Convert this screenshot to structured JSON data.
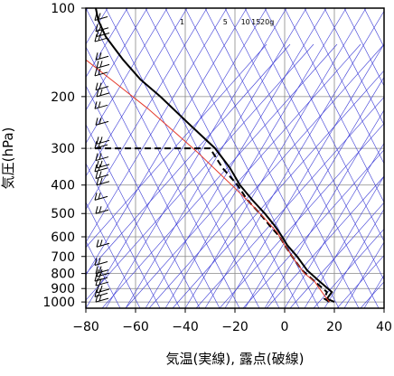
{
  "chart_data": {
    "type": "line",
    "title": "",
    "xlabel": "気温(実線), 露点(破線)",
    "ylabel": "気圧(hPa)",
    "xlim": [
      -80,
      40
    ],
    "ylim": [
      1050,
      100
    ],
    "yscale": "log",
    "x_ticks": [
      "−80",
      "−60",
      "−40",
      "−20",
      "0",
      "20",
      "40"
    ],
    "x_tick_values": [
      -80,
      -60,
      -40,
      -20,
      0,
      20,
      40
    ],
    "y_ticks": [
      "100",
      "200",
      "300",
      "400",
      "500",
      "600",
      "700",
      "800",
      "900",
      "1000"
    ],
    "y_tick_values": [
      100,
      200,
      300,
      400,
      500,
      600,
      700,
      800,
      900,
      1000
    ],
    "mixing_ratio_labels": [
      "1",
      "5",
      "10",
      "15",
      "20g"
    ],
    "mixing_ratio_values": [
      1,
      5,
      10,
      15,
      20
    ],
    "series": [
      {
        "key": "temperature",
        "style": "solid",
        "color": "#000000",
        "points": [
          [
            20,
            1000
          ],
          [
            17,
            975
          ],
          [
            19,
            925
          ],
          [
            14,
            850
          ],
          [
            9,
            780
          ],
          [
            5,
            700
          ],
          [
            1,
            640
          ],
          [
            -1,
            600
          ],
          [
            -4,
            550
          ],
          [
            -8,
            500
          ],
          [
            -13,
            450
          ],
          [
            -18,
            400
          ],
          [
            -22,
            350
          ],
          [
            -28,
            300
          ],
          [
            -38,
            250
          ],
          [
            -50,
            200
          ],
          [
            -58,
            175
          ],
          [
            -65,
            150
          ],
          [
            -72,
            125
          ],
          [
            -75,
            110
          ],
          [
            -76,
            100
          ]
        ]
      },
      {
        "key": "dewpoint",
        "style": "dashed",
        "color": "#000000",
        "points": [
          [
            18,
            1000
          ],
          [
            16,
            975
          ],
          [
            17,
            925
          ],
          [
            12,
            850
          ],
          [
            7,
            780
          ],
          [
            3,
            700
          ],
          [
            0,
            640
          ],
          [
            -2,
            600
          ],
          [
            -6,
            550
          ],
          [
            -10,
            500
          ],
          [
            -15,
            450
          ],
          [
            -19,
            400
          ],
          [
            -25,
            350
          ],
          [
            -30,
            300
          ],
          [
            -78,
            300
          ]
        ]
      },
      {
        "key": "parcel",
        "style": "solid",
        "color": "#e53a2b",
        "points": [
          [
            18,
            1000
          ],
          [
            16,
            950
          ],
          [
            14,
            900
          ],
          [
            12,
            850
          ],
          [
            8,
            800
          ],
          [
            4,
            720
          ],
          [
            0,
            640
          ],
          [
            -3,
            580
          ],
          [
            -8,
            520
          ],
          [
            -14,
            460
          ],
          [
            -20,
            410
          ],
          [
            -27,
            360
          ],
          [
            -35,
            310
          ],
          [
            -43,
            270
          ],
          [
            -55,
            220
          ],
          [
            -68,
            180
          ],
          [
            -80,
            150
          ]
        ]
      }
    ],
    "wind_barbs": [
      {
        "p": 110
      },
      {
        "p": 120
      },
      {
        "p": 125
      },
      {
        "p": 130
      },
      {
        "p": 150
      },
      {
        "p": 160
      },
      {
        "p": 170
      },
      {
        "p": 190
      },
      {
        "p": 200
      },
      {
        "p": 220
      },
      {
        "p": 250
      },
      {
        "p": 290
      },
      {
        "p": 300
      },
      {
        "p": 330
      },
      {
        "p": 350
      },
      {
        "p": 360
      },
      {
        "p": 380
      },
      {
        "p": 400
      },
      {
        "p": 450
      },
      {
        "p": 500
      },
      {
        "p": 650
      },
      {
        "p": 750
      },
      {
        "p": 800
      },
      {
        "p": 820
      },
      {
        "p": 850
      },
      {
        "p": 880
      },
      {
        "p": 930
      },
      {
        "p": 960
      },
      {
        "p": 1000
      }
    ],
    "colors": {
      "background_lines": "#3b3bd6",
      "temperature": "#000000",
      "dewpoint": "#000000",
      "parcel": "#e53a2b",
      "grid": "#888888"
    }
  }
}
